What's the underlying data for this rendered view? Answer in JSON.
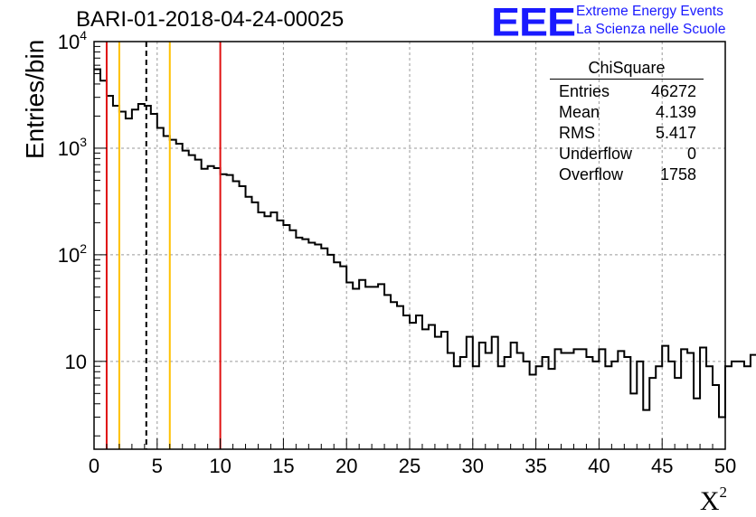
{
  "title": "BARI-01-2018-04-24-00025",
  "logo": {
    "mark": "EEE",
    "line1": "Extreme Energy Events",
    "line2": "La Scienza nelle Scuole",
    "color": "#1a1aff"
  },
  "stats_box": {
    "title": "ChiSquare",
    "rows": [
      {
        "label": "Entries",
        "value": "46272"
      },
      {
        "label": "Mean",
        "value": "4.139"
      },
      {
        "label": "RMS",
        "value": "5.417"
      },
      {
        "label": "Underflow",
        "value": "0"
      },
      {
        "label": "Overflow",
        "value": "1758"
      }
    ]
  },
  "chart_data": {
    "type": "histogram",
    "title": "BARI-01-2018-04-24-00025",
    "xlabel": "X",
    "xlabel_superscript": "2",
    "ylabel": "Entries/bin",
    "yscale": "log",
    "xlim": [
      0,
      50
    ],
    "ylim": [
      1.5,
      10000
    ],
    "grid": true,
    "bin_width": 0.5,
    "xticks": [
      {
        "v": 0,
        "t": "0"
      },
      {
        "v": 5,
        "t": "5"
      },
      {
        "v": 10,
        "t": "10"
      },
      {
        "v": 15,
        "t": "15"
      },
      {
        "v": 20,
        "t": "20"
      },
      {
        "v": 25,
        "t": "25"
      },
      {
        "v": 30,
        "t": "30"
      },
      {
        "v": 35,
        "t": "35"
      },
      {
        "v": 40,
        "t": "40"
      },
      {
        "v": 45,
        "t": "45"
      },
      {
        "v": 50,
        "t": "50"
      }
    ],
    "yticks": [
      {
        "v": 10,
        "base": "10",
        "exp": ""
      },
      {
        "v": 100,
        "base": "10",
        "exp": "2"
      },
      {
        "v": 1000,
        "base": "10",
        "exp": "3"
      },
      {
        "v": 10000,
        "base": "10",
        "exp": "4"
      }
    ],
    "values": [
      5500,
      4300,
      3100,
      2500,
      2200,
      1900,
      2300,
      2600,
      2500,
      2100,
      1550,
      1300,
      1200,
      1100,
      950,
      860,
      780,
      640,
      680,
      650,
      570,
      560,
      490,
      440,
      350,
      310,
      250,
      230,
      250,
      210,
      190,
      170,
      145,
      140,
      130,
      125,
      115,
      100,
      85,
      78,
      55,
      48,
      58,
      50,
      50,
      53,
      42,
      36,
      33,
      27,
      23,
      27,
      20,
      22,
      17,
      19,
      12,
      9,
      11,
      17,
      9,
      15,
      12,
      17,
      9,
      11,
      15,
      12,
      10,
      7.5,
      9,
      11,
      8.5,
      13,
      12,
      12,
      13,
      13,
      11,
      10,
      13,
      9,
      10,
      12.5,
      11,
      5,
      10,
      3.5,
      7,
      9,
      14,
      10,
      7,
      13,
      12,
      4.5,
      13.5,
      9,
      6,
      3,
      9,
      10,
      10,
      9,
      11.5
    ],
    "markers": [
      {
        "x": 1,
        "color": "#e01010",
        "style": "solid"
      },
      {
        "x": 2,
        "color": "#ffc000",
        "style": "solid"
      },
      {
        "x": 4.139,
        "color": "#000000",
        "style": "dashed"
      },
      {
        "x": 6,
        "color": "#ffc000",
        "style": "solid"
      },
      {
        "x": 10,
        "color": "#e01010",
        "style": "solid"
      }
    ]
  }
}
